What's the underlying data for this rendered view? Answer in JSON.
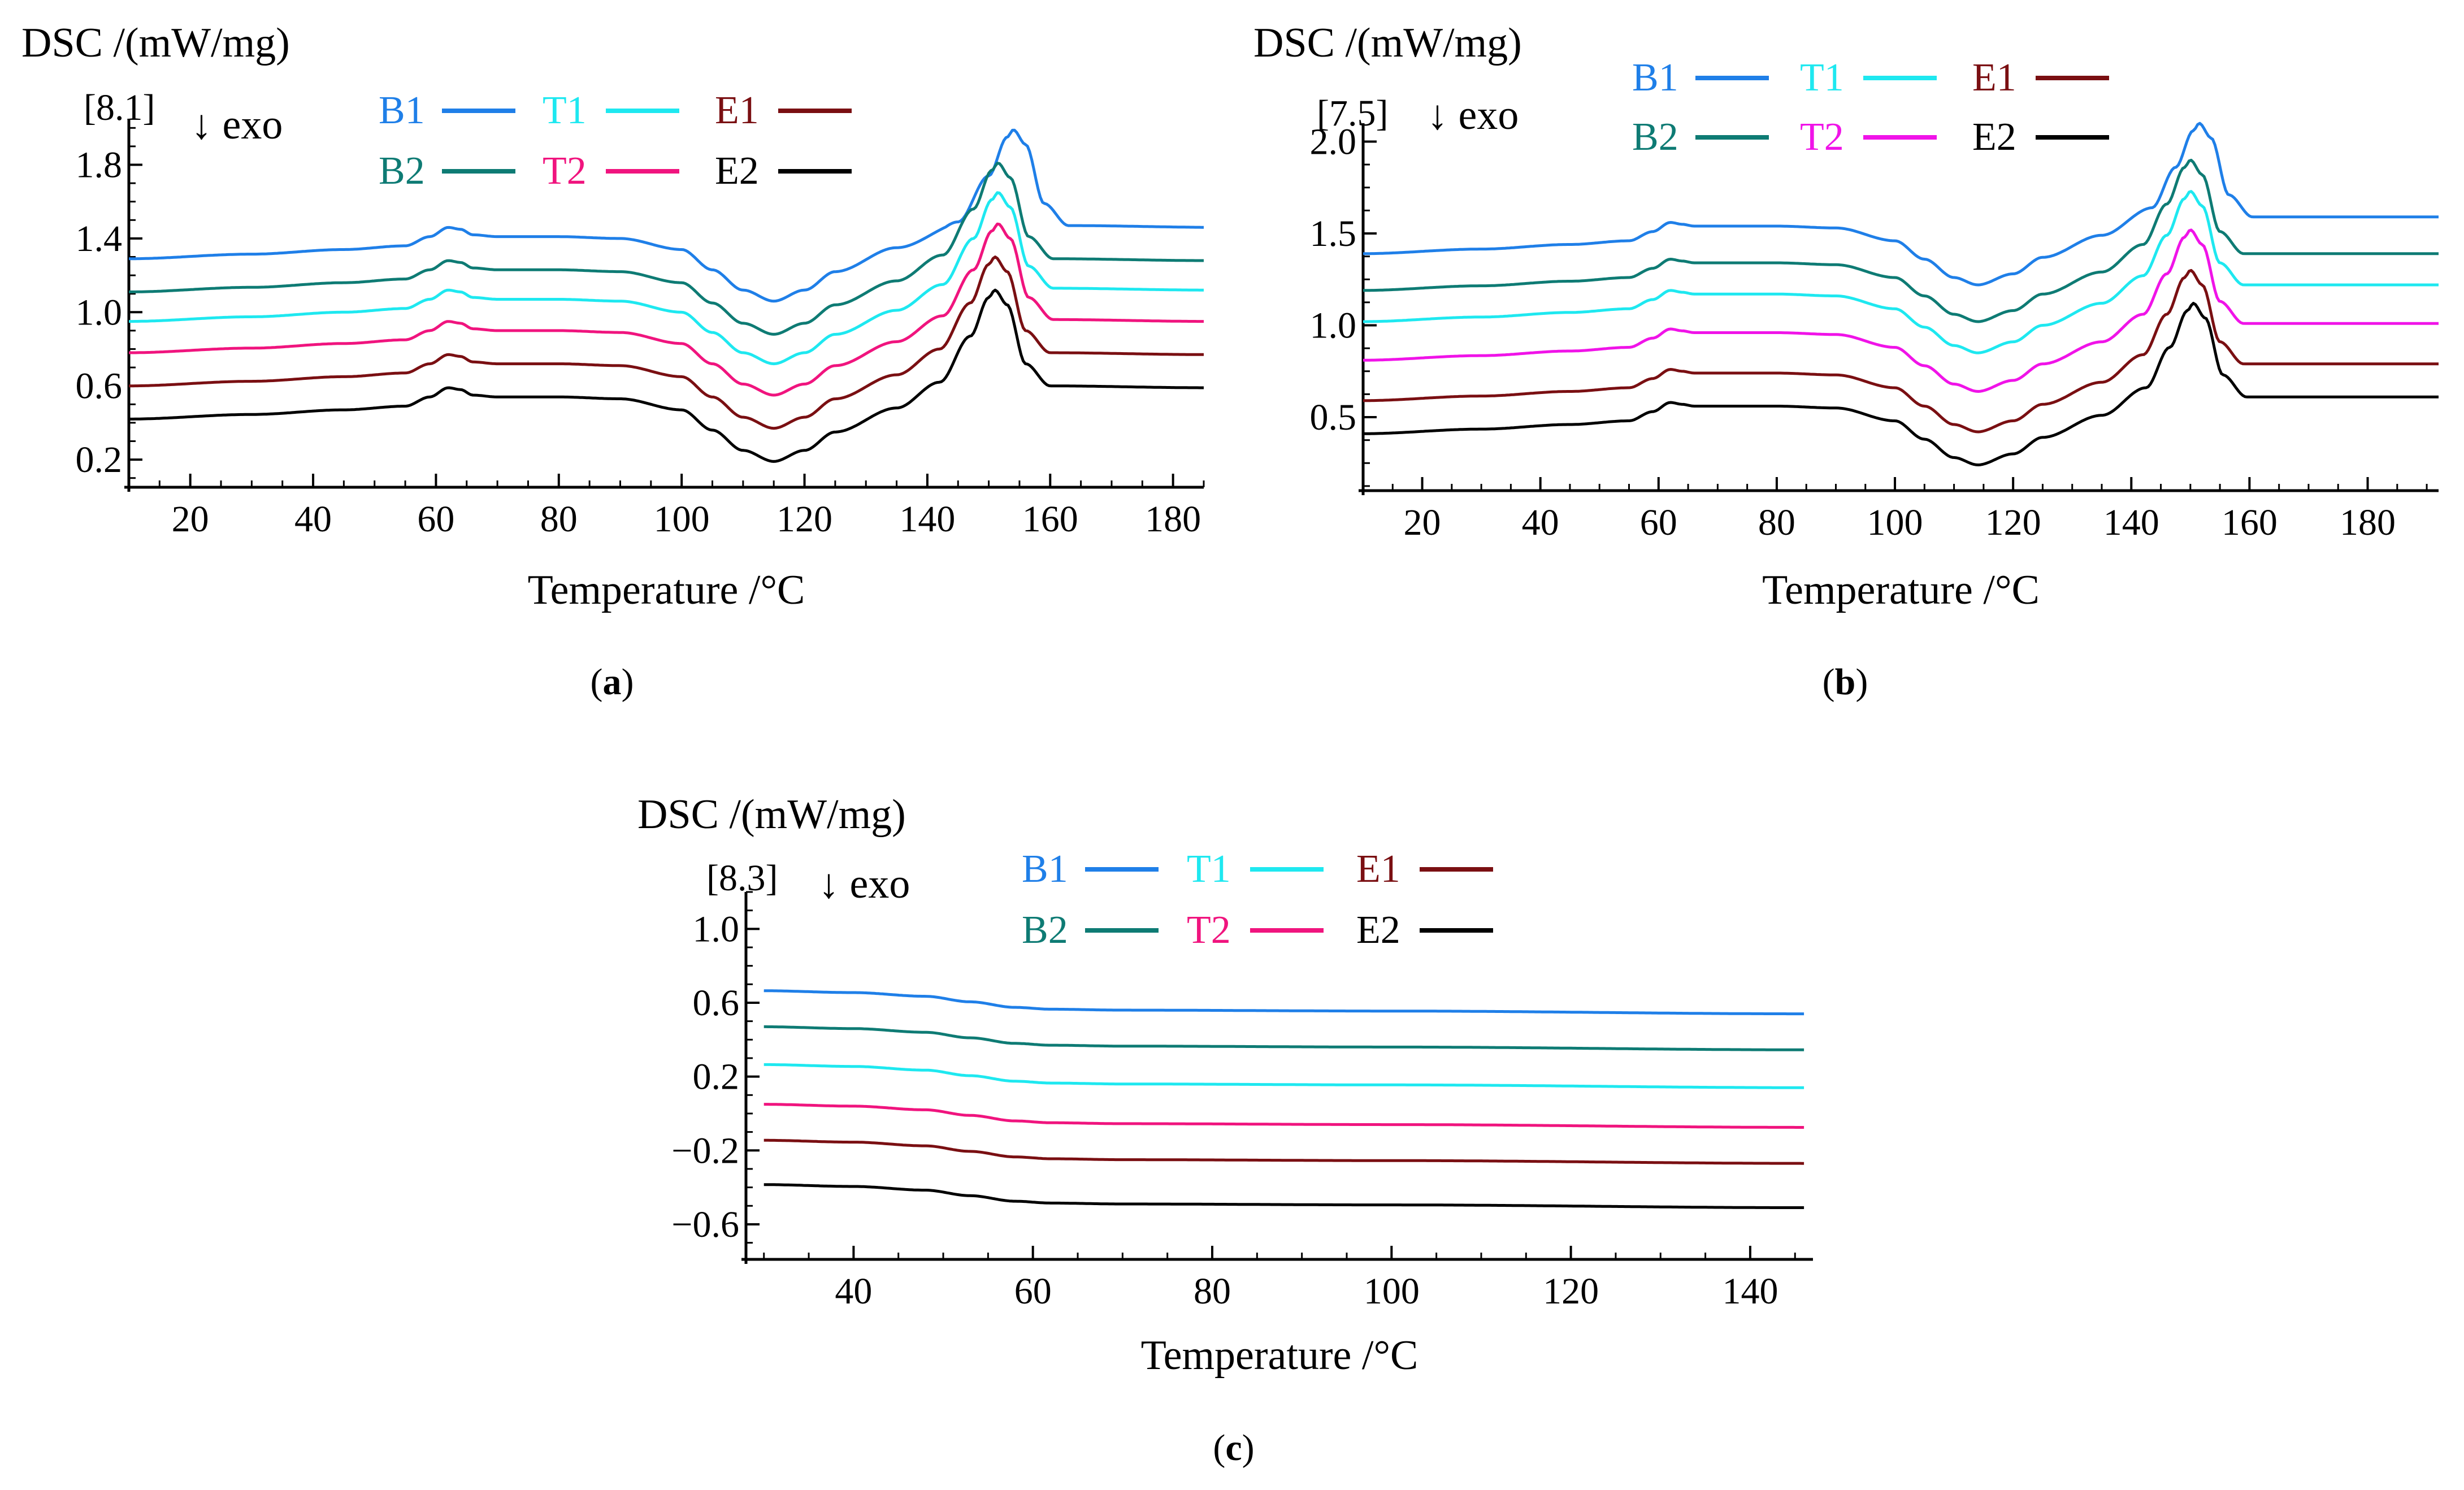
{
  "figure": {
    "exo_label": "↓ exo"
  },
  "chart_data": [
    {
      "type": "line",
      "panel_label": "(a)",
      "offset_label": "[8.1]",
      "xlabel": "Temperature /°C",
      "ylabel": "DSC /(mW/mg)",
      "xlim": [
        10,
        185
      ],
      "ylim": [
        0.05,
        2.05
      ],
      "xticks": [
        20,
        40,
        60,
        80,
        100,
        120,
        140,
        160,
        180
      ],
      "yticks": [
        0.2,
        0.6,
        1.0,
        1.4,
        1.8
      ],
      "ytick_labels": [
        "0.2",
        "0.6",
        "1.0",
        "1.4",
        "1.8"
      ],
      "legend": {
        "rows": [
          [
            "B1",
            "T1",
            "E1"
          ],
          [
            "B2",
            "T2",
            "E2"
          ]
        ]
      },
      "shape": {
        "x": [
          10,
          30,
          45,
          55,
          59,
          62,
          64,
          66,
          70,
          80,
          90,
          100,
          105,
          110,
          115,
          120,
          125,
          135,
          142,
          147,
          150,
          151,
          153,
          156,
          160,
          185
        ],
        "dy": [
          0,
          0.025,
          0.05,
          0.07,
          0.12,
          0.17,
          0.16,
          0.13,
          0.12,
          0.12,
          0.11,
          0.05,
          -0.06,
          -0.17,
          -0.23,
          -0.17,
          -0.07,
          0.06,
          0.2,
          0.45,
          0.66,
          0.7,
          0.62,
          0.3,
          0.18,
          0.17
        ]
      },
      "series": [
        {
          "name": "B1",
          "color": "#1f7fe8",
          "base": 1.29,
          "peak_x": 154,
          "scale": 1.0
        },
        {
          "name": "B2",
          "color": "#0e7b74",
          "base": 1.11,
          "peak_x": 151.5,
          "scale": 1.0
        },
        {
          "name": "T1",
          "color": "#1ee8f0",
          "base": 0.95,
          "peak_x": 151.5,
          "scale": 1.0
        },
        {
          "name": "T2",
          "color": "#f0147e",
          "base": 0.78,
          "peak_x": 151.5,
          "scale": 1.0
        },
        {
          "name": "E1",
          "color": "#7a0f12",
          "base": 0.6,
          "peak_x": 151,
          "scale": 1.0
        },
        {
          "name": "E2",
          "color": "#000000",
          "base": 0.42,
          "peak_x": 151,
          "scale": 1.0
        }
      ]
    },
    {
      "type": "line",
      "panel_label": "(b)",
      "offset_label": "[7.5]",
      "xlabel": "Temperature /°C",
      "ylabel": "DSC /(mW/mg)",
      "xlim": [
        10,
        192
      ],
      "ylim": [
        0.1,
        2.1
      ],
      "xticks": [
        20,
        40,
        60,
        80,
        100,
        120,
        140,
        160,
        180
      ],
      "yticks": [
        0.5,
        1.0,
        1.5,
        2.0
      ],
      "ytick_labels": [
        "0.5",
        "1.0",
        "1.5",
        "2.0"
      ],
      "legend": {
        "rows": [
          [
            "B1",
            "T1",
            "E1"
          ],
          [
            "B2",
            "T2",
            "E2"
          ]
        ]
      },
      "shape": {
        "x": [
          10,
          30,
          45,
          55,
          59,
          62,
          64,
          66,
          70,
          80,
          90,
          100,
          105,
          110,
          114,
          120,
          125,
          135,
          142,
          146,
          149,
          150,
          152,
          155,
          159,
          192
        ],
        "dy": [
          0,
          0.025,
          0.05,
          0.07,
          0.12,
          0.17,
          0.16,
          0.15,
          0.15,
          0.15,
          0.14,
          0.07,
          -0.03,
          -0.13,
          -0.17,
          -0.11,
          -0.02,
          0.1,
          0.25,
          0.47,
          0.67,
          0.71,
          0.63,
          0.32,
          0.2,
          0.2
        ]
      },
      "series": [
        {
          "name": "B1",
          "color": "#1f7fe8",
          "base": 1.39,
          "peak_x": 151.5,
          "scale": 1.0
        },
        {
          "name": "B2",
          "color": "#0e7b74",
          "base": 1.19,
          "peak_x": 150,
          "scale": 1.0
        },
        {
          "name": "T1",
          "color": "#1ee8f0",
          "base": 1.02,
          "peak_x": 150,
          "scale": 1.0
        },
        {
          "name": "T2",
          "color": "#f013e8",
          "base": 0.81,
          "peak_x": 150,
          "scale": 1.0
        },
        {
          "name": "E1",
          "color": "#7a0f12",
          "base": 0.59,
          "peak_x": 150,
          "scale": 1.0
        },
        {
          "name": "E2",
          "color": "#000000",
          "base": 0.41,
          "peak_x": 150.5,
          "scale": 1.0
        }
      ]
    },
    {
      "type": "line",
      "panel_label": "(c)",
      "offset_label": "[8.3]",
      "xlabel": "Temperature /°C",
      "ylabel": "DSC /(mW/mg)",
      "xlim": [
        28,
        147
      ],
      "ylim": [
        -0.79,
        1.2
      ],
      "xticks": [
        40,
        60,
        80,
        100,
        120,
        140
      ],
      "yticks": [
        -0.6,
        -0.2,
        0.2,
        0.6,
        1.0
      ],
      "ytick_labels": [
        "−0.6",
        "−0.2",
        "0.2",
        "0.6",
        "1.0"
      ],
      "legend": {
        "rows": [
          [
            "B1",
            "T1",
            "E1"
          ],
          [
            "B2",
            "T2",
            "E2"
          ]
        ]
      },
      "shape": {
        "x": [
          30,
          40,
          48,
          53,
          58,
          62,
          70,
          100,
          146
        ],
        "dy": [
          0,
          -0.01,
          -0.03,
          -0.06,
          -0.09,
          -0.1,
          -0.105,
          -0.11,
          -0.125
        ]
      },
      "series": [
        {
          "name": "B1",
          "color": "#1f7fe8",
          "base": 0.665,
          "peak_x": 0,
          "scale": 1.0
        },
        {
          "name": "B2",
          "color": "#0e7b74",
          "base": 0.47,
          "peak_x": 0,
          "scale": 1.0
        },
        {
          "name": "T1",
          "color": "#1ee8f0",
          "base": 0.265,
          "peak_x": 0,
          "scale": 1.0
        },
        {
          "name": "T2",
          "color": "#f0147e",
          "base": 0.05,
          "peak_x": 0,
          "scale": 1.0
        },
        {
          "name": "E1",
          "color": "#7a0f12",
          "base": -0.145,
          "peak_x": 0,
          "scale": 1.0
        },
        {
          "name": "E2",
          "color": "#000000",
          "base": -0.385,
          "peak_x": 0,
          "scale": 1.0
        }
      ]
    }
  ]
}
